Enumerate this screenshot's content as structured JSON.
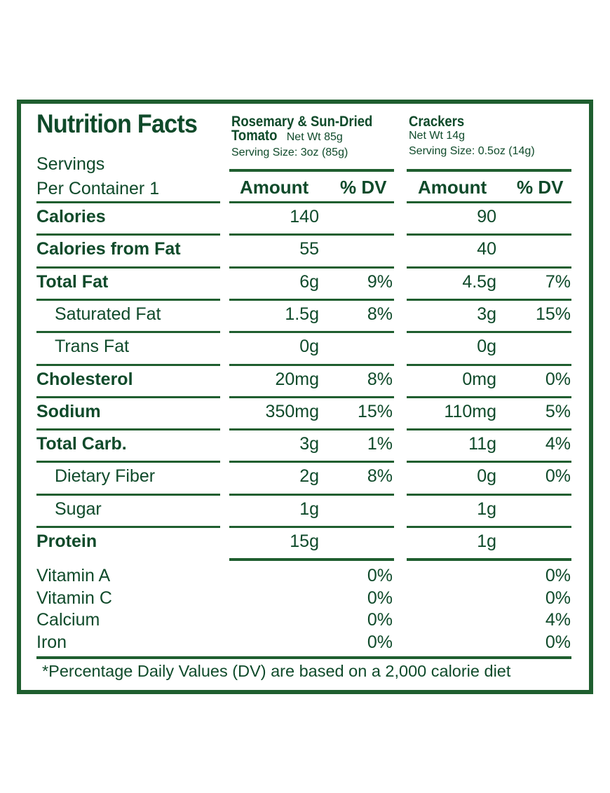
{
  "title": "Nutrition Facts",
  "servings_line1": "Servings",
  "servings_line2": "Per Container 1",
  "products": [
    {
      "name_line1": "Rosemary & Sun-Dried",
      "name_line2_bold": "Tomato",
      "net_wt": "Net Wt 85g",
      "serving_size": "Serving Size: 3oz (85g)"
    },
    {
      "name_line1": "Crackers",
      "name_line2_bold": "",
      "net_wt": "Net Wt 14g",
      "serving_size": "Serving Size: 0.5oz (14g)"
    }
  ],
  "column_headers": {
    "amount": "Amount",
    "dv": "% DV"
  },
  "rows": [
    {
      "label": "Calories",
      "bold": true,
      "indent": false,
      "p1_amount": "140",
      "p1_dv": "",
      "p2_amount": "90",
      "p2_dv": ""
    },
    {
      "label": "Calories from Fat",
      "bold": true,
      "indent": false,
      "p1_amount": "55",
      "p1_dv": "",
      "p2_amount": "40",
      "p2_dv": ""
    },
    {
      "label": "Total Fat",
      "bold": true,
      "indent": false,
      "p1_amount": "6g",
      "p1_dv": "9%",
      "p2_amount": "4.5g",
      "p2_dv": "7%"
    },
    {
      "label": "Saturated Fat",
      "bold": false,
      "indent": true,
      "p1_amount": "1.5g",
      "p1_dv": "8%",
      "p2_amount": "3g",
      "p2_dv": "15%"
    },
    {
      "label": "Trans Fat",
      "bold": false,
      "indent": true,
      "p1_amount": "0g",
      "p1_dv": "",
      "p2_amount": "0g",
      "p2_dv": ""
    },
    {
      "label": "Cholesterol",
      "bold": true,
      "indent": false,
      "p1_amount": "20mg",
      "p1_dv": "8%",
      "p2_amount": "0mg",
      "p2_dv": "0%"
    },
    {
      "label": "Sodium",
      "bold": true,
      "indent": false,
      "p1_amount": "350mg",
      "p1_dv": "15%",
      "p2_amount": "110mg",
      "p2_dv": "5%"
    },
    {
      "label": "Total Carb.",
      "bold": true,
      "indent": false,
      "p1_amount": "3g",
      "p1_dv": "1%",
      "p2_amount": "11g",
      "p2_dv": "4%"
    },
    {
      "label": "Dietary Fiber",
      "bold": false,
      "indent": true,
      "p1_amount": "2g",
      "p1_dv": "8%",
      "p2_amount": "0g",
      "p2_dv": "0%"
    },
    {
      "label": "Sugar",
      "bold": false,
      "indent": true,
      "p1_amount": "1g",
      "p1_dv": "",
      "p2_amount": "1g",
      "p2_dv": ""
    },
    {
      "label": "Protein",
      "bold": true,
      "indent": false,
      "p1_amount": "15g",
      "p1_dv": "",
      "p2_amount": "1g",
      "p2_dv": ""
    }
  ],
  "vitamins": [
    {
      "label": "Vitamin A",
      "p1_dv": "0%",
      "p2_dv": "0%"
    },
    {
      "label": "Vitamin C",
      "p1_dv": "0%",
      "p2_dv": "0%"
    },
    {
      "label": "Calcium",
      "p1_dv": "0%",
      "p2_dv": "4%"
    },
    {
      "label": "Iron",
      "p1_dv": "0%",
      "p2_dv": "0%"
    }
  ],
  "footnote": "*Percentage Daily Values (DV) are based on a 2,000 calorie diet",
  "colors": {
    "green": "#1f5e2f",
    "text": "#0f4a2a",
    "background": "#ffffff"
  }
}
